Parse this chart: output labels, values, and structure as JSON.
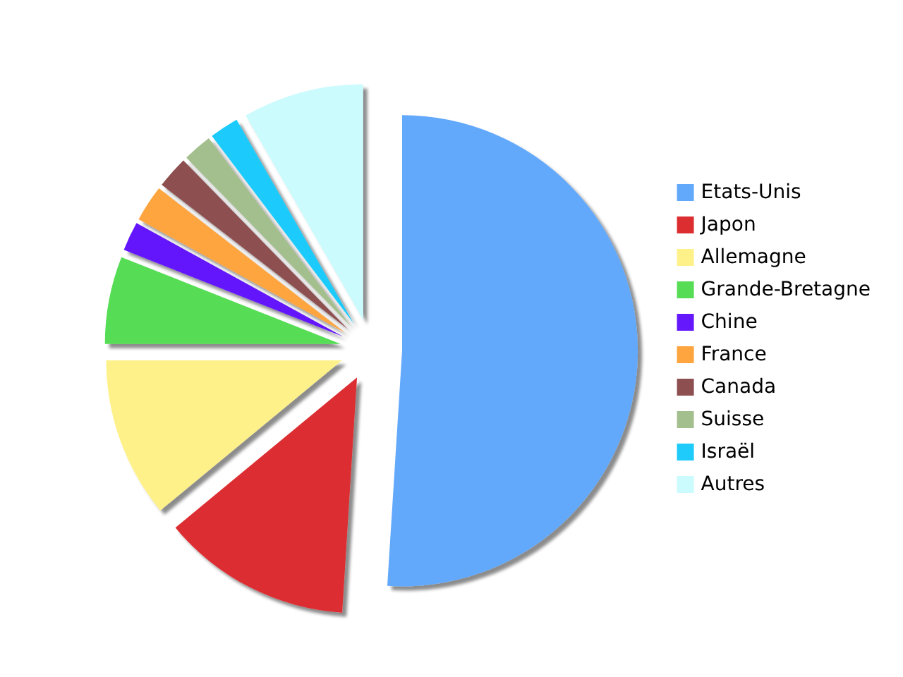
{
  "chart_data": {
    "type": "pie",
    "categories": [
      "Etats-Unis",
      "Japon",
      "Allemagne",
      "Grande-Bretagne",
      "Chine",
      "France",
      "Canada",
      "Suisse",
      "Israël",
      "Autres"
    ],
    "values": [
      51,
      13,
      11,
      6,
      2,
      2.5,
      2.2,
      2,
      2,
      8.3
    ],
    "colors": [
      "#62a8fb",
      "#dc2e30",
      "#fef18a",
      "#56dd55",
      "#6418fb",
      "#fea53f",
      "#8d4f50",
      "#a4bf8e",
      "#1ecbfb",
      "#cbfbfd"
    ],
    "legend": "right"
  }
}
